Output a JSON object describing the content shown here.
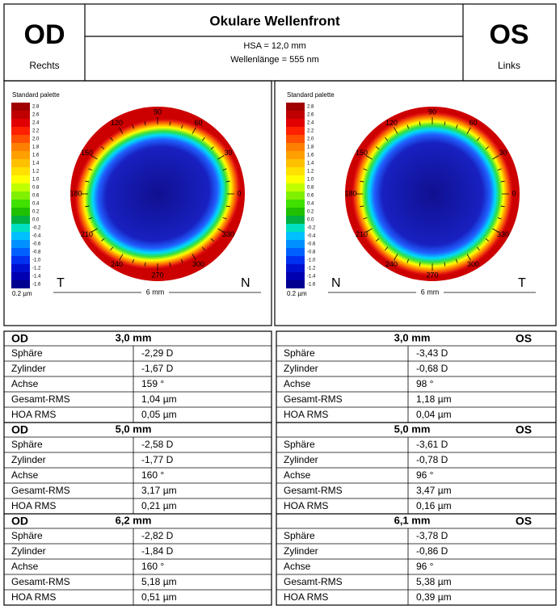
{
  "header": {
    "left_eye": "OD",
    "left_side": "Rechts",
    "title": "Okulare Wellenfront",
    "hsa": "HSA = 12,0 mm",
    "wavelength": "Wellenlänge  = 555 nm",
    "right_eye": "OS",
    "right_side": "Links"
  },
  "maps": [
    {
      "palette_title": "Standard palette",
      "palette_labels": [
        "2.8",
        "2.6",
        "2.4",
        "2.2",
        "2.0",
        "1.8",
        "1.6",
        "1.4",
        "1.2",
        "1.0",
        "0.8",
        "0.6",
        "0.4",
        "0.2",
        "0.0",
        "-0.2",
        "-0.4",
        "-0.6",
        "-0.8",
        "-1.0",
        "-1.2",
        "-1.4",
        "-1.6"
      ],
      "unit": "0.2 µm",
      "degree_labels": [
        "0",
        "30",
        "60",
        "90",
        "120",
        "150",
        "180",
        "210",
        "240",
        "270",
        "300",
        "330"
      ],
      "left_letter": "T",
      "right_letter": "N",
      "scale": "6 mm"
    },
    {
      "palette_title": "Standard palette",
      "palette_labels": [
        "2.8",
        "2.6",
        "2.4",
        "2.2",
        "2.0",
        "1.8",
        "1.6",
        "1.4",
        "1.2",
        "1.0",
        "0.8",
        "0.6",
        "0.4",
        "0.2",
        "0.0",
        "-0.2",
        "-0.4",
        "-0.6",
        "-0.8",
        "-1.0",
        "-1.2",
        "-1.4",
        "-1.6"
      ],
      "unit": "0.2 µm",
      "degree_labels": [
        "0",
        "30",
        "60",
        "90",
        "120",
        "150",
        "180",
        "210",
        "240",
        "270",
        "300",
        "330"
      ],
      "left_letter": "N",
      "right_letter": "T",
      "scale": "6 mm"
    }
  ],
  "tables": [
    {
      "eye": "OD",
      "sections": [
        {
          "diameter": "3,0 mm",
          "rows": [
            [
              "Sphäre",
              "-2,29 D"
            ],
            [
              "Zylinder",
              "-1,67 D"
            ],
            [
              "Achse",
              "159 °"
            ],
            [
              "Gesamt-RMS",
              "1,04 µm"
            ],
            [
              "HOA RMS",
              "0,05 µm"
            ]
          ]
        },
        {
          "diameter": "5,0 mm",
          "rows": [
            [
              "Sphäre",
              "-2,58 D"
            ],
            [
              "Zylinder",
              "-1,77 D"
            ],
            [
              "Achse",
              "160 °"
            ],
            [
              "Gesamt-RMS",
              "3,17 µm"
            ],
            [
              "HOA RMS",
              "0,21 µm"
            ]
          ]
        },
        {
          "diameter": "6,2 mm",
          "rows": [
            [
              "Sphäre",
              "-2,82 D"
            ],
            [
              "Zylinder",
              "-1,84 D"
            ],
            [
              "Achse",
              "160 °"
            ],
            [
              "Gesamt-RMS",
              "5,18 µm"
            ],
            [
              "HOA RMS",
              "0,51 µm"
            ]
          ]
        }
      ]
    },
    {
      "eye": "OS",
      "sections": [
        {
          "diameter": "3,0 mm",
          "rows": [
            [
              "Sphäre",
              "-3,43 D"
            ],
            [
              "Zylinder",
              "-0,68 D"
            ],
            [
              "Achse",
              "98 °"
            ],
            [
              "Gesamt-RMS",
              "1,18 µm"
            ],
            [
              "HOA RMS",
              "0,04 µm"
            ]
          ]
        },
        {
          "diameter": "5,0 mm",
          "rows": [
            [
              "Sphäre",
              "-3,61 D"
            ],
            [
              "Zylinder",
              "-0,78 D"
            ],
            [
              "Achse",
              "96 °"
            ],
            [
              "Gesamt-RMS",
              "3,47 µm"
            ],
            [
              "HOA RMS",
              "0,16 µm"
            ]
          ]
        },
        {
          "diameter": "6,1 mm",
          "rows": [
            [
              "Sphäre",
              "-3,78 D"
            ],
            [
              "Zylinder",
              "-0,86 D"
            ],
            [
              "Achse",
              "96 °"
            ],
            [
              "Gesamt-RMS",
              "5,38 µm"
            ],
            [
              "HOA RMS",
              "0,39 µm"
            ]
          ]
        }
      ]
    }
  ]
}
